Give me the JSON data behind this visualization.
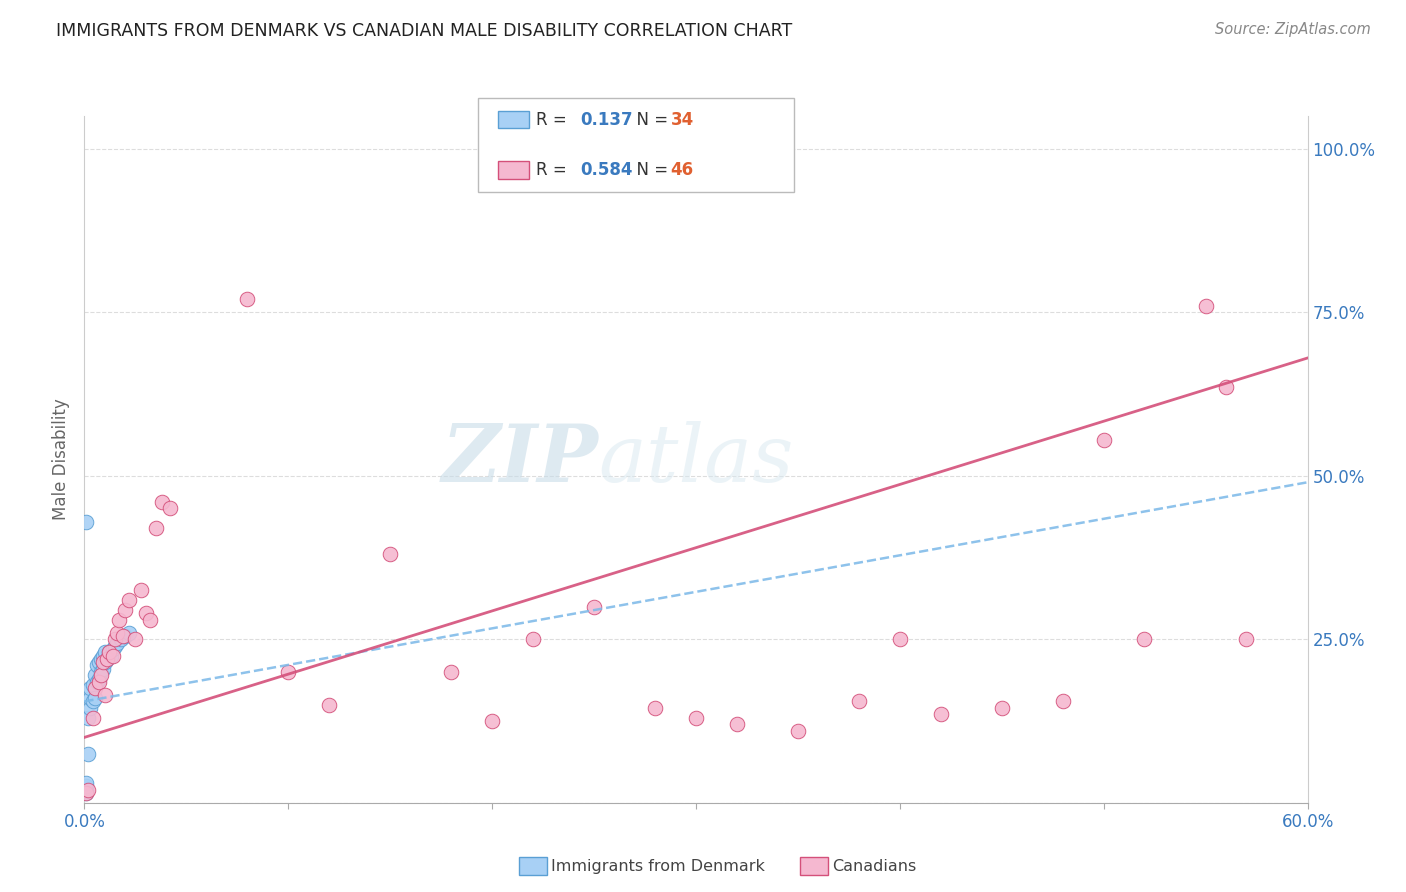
{
  "title": "IMMIGRANTS FROM DENMARK VS CANADIAN MALE DISABILITY CORRELATION CHART",
  "source": "Source: ZipAtlas.com",
  "ylabel": "Male Disability",
  "xlim": [
    0.0,
    0.6
  ],
  "ylim": [
    0.0,
    1.05
  ],
  "ytick_vals": [
    0.0,
    0.25,
    0.5,
    0.75,
    1.0
  ],
  "xtick_vals": [
    0.0,
    0.1,
    0.2,
    0.3,
    0.4,
    0.5,
    0.6
  ],
  "denmark_color": "#a8d0f5",
  "denmark_edge": "#5a9fd4",
  "canadian_color": "#f5b8d0",
  "canadian_edge": "#d4507a",
  "denmark_line_color": "#7ab8e8",
  "canadian_line_color": "#d4507a",
  "watermark_zip": "ZIP",
  "watermark_atlas": "atlas",
  "background_color": "#ffffff",
  "grid_color": "#dddddd",
  "denmark_x": [
    0.001,
    0.001,
    0.001,
    0.001,
    0.001,
    0.002,
    0.002,
    0.003,
    0.003,
    0.003,
    0.004,
    0.004,
    0.005,
    0.005,
    0.006,
    0.006,
    0.007,
    0.007,
    0.008,
    0.008,
    0.009,
    0.009,
    0.01,
    0.01,
    0.011,
    0.012,
    0.013,
    0.014,
    0.015,
    0.016,
    0.018,
    0.02,
    0.022,
    0.001
  ],
  "denmark_y": [
    0.015,
    0.018,
    0.02,
    0.025,
    0.03,
    0.075,
    0.13,
    0.145,
    0.16,
    0.175,
    0.155,
    0.18,
    0.16,
    0.195,
    0.185,
    0.21,
    0.19,
    0.215,
    0.2,
    0.22,
    0.205,
    0.225,
    0.215,
    0.23,
    0.22,
    0.23,
    0.225,
    0.235,
    0.24,
    0.245,
    0.25,
    0.255,
    0.26,
    0.43
  ],
  "canadian_x": [
    0.001,
    0.002,
    0.004,
    0.005,
    0.007,
    0.008,
    0.009,
    0.01,
    0.011,
    0.012,
    0.014,
    0.015,
    0.016,
    0.017,
    0.019,
    0.02,
    0.022,
    0.025,
    0.028,
    0.03,
    0.032,
    0.035,
    0.038,
    0.042,
    0.08,
    0.1,
    0.12,
    0.15,
    0.18,
    0.2,
    0.22,
    0.25,
    0.28,
    0.3,
    0.32,
    0.35,
    0.38,
    0.4,
    0.42,
    0.45,
    0.48,
    0.5,
    0.52,
    0.55,
    0.56,
    0.57
  ],
  "canadian_y": [
    0.015,
    0.02,
    0.13,
    0.175,
    0.185,
    0.195,
    0.215,
    0.165,
    0.22,
    0.23,
    0.225,
    0.25,
    0.26,
    0.28,
    0.255,
    0.295,
    0.31,
    0.25,
    0.325,
    0.29,
    0.28,
    0.42,
    0.46,
    0.45,
    0.77,
    0.2,
    0.15,
    0.38,
    0.2,
    0.125,
    0.25,
    0.3,
    0.145,
    0.13,
    0.12,
    0.11,
    0.155,
    0.25,
    0.135,
    0.145,
    0.155,
    0.555,
    0.25,
    0.76,
    0.635,
    0.25
  ],
  "dk_trend_x": [
    0.0,
    0.6
  ],
  "dk_trend_y": [
    0.155,
    0.49
  ],
  "ca_trend_x": [
    0.0,
    0.6
  ],
  "ca_trend_y": [
    0.1,
    0.68
  ]
}
